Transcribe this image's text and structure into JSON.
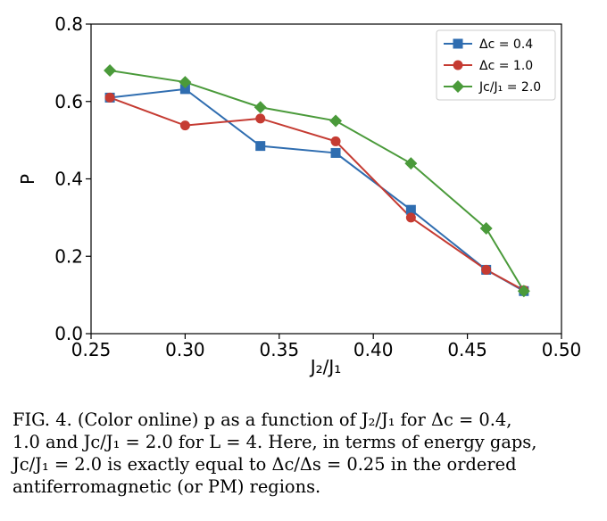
{
  "chart_data": {
    "type": "line",
    "xlabel": "J₂/J₁",
    "ylabel": "P",
    "xlim": [
      0.25,
      0.5
    ],
    "ylim": [
      0.0,
      0.8
    ],
    "xticks": [
      "0.25",
      "0.30",
      "0.35",
      "0.40",
      "0.45",
      "0.50"
    ],
    "yticks": [
      "0.0",
      "0.2",
      "0.4",
      "0.6",
      "0.8"
    ],
    "grid": false,
    "legend_position": "top-right",
    "x": [
      0.26,
      0.3,
      0.34,
      0.38,
      0.42,
      0.46,
      0.48
    ],
    "series": [
      {
        "name": "Δc = 0.4",
        "color": "#2f6db0",
        "marker": "square",
        "values": [
          0.61,
          0.632,
          0.485,
          0.467,
          0.32,
          0.165,
          0.11
        ]
      },
      {
        "name": "Δc = 1.0",
        "color": "#c53b32",
        "marker": "circle",
        "values": [
          0.61,
          0.538,
          0.556,
          0.497,
          0.3,
          0.165,
          0.112
        ]
      },
      {
        "name": "Jc/J₁ = 2.0",
        "color": "#4a9a3a",
        "marker": "diamond",
        "values": [
          0.68,
          0.65,
          0.585,
          0.55,
          0.44,
          0.272,
          0.11
        ]
      }
    ]
  },
  "caption": {
    "lines": [
      "FIG. 4.   (Color online) p as a function of J₂/J₁ for Δc = 0.4,",
      "1.0 and Jc/J₁ = 2.0 for L = 4. Here, in terms of energy gaps,",
      "Jc/J₁ = 2.0 is exactly equal to Δc/Δs = 0.25 in the ordered",
      "antiferromagnetic (or PM) regions."
    ]
  }
}
